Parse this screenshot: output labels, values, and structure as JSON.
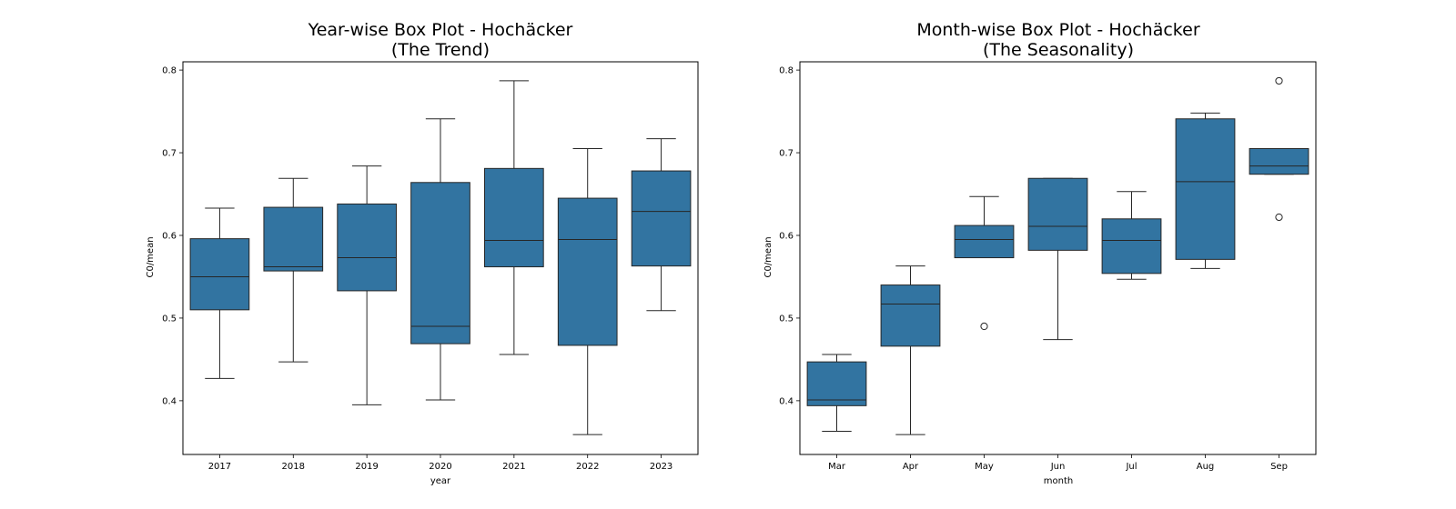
{
  "colors": {
    "box_fill": "#3274a1",
    "line": "#262626",
    "frame": "#000000"
  },
  "chart_data": [
    {
      "type": "box",
      "title": "Year-wise Box Plot - Hochäcker",
      "subtitle": "(The Trend)",
      "xlabel": "year",
      "ylabel": "C0/mean",
      "ylim": [
        0.335,
        0.81
      ],
      "yticks": [
        "0.4",
        "0.5",
        "0.6",
        "0.7",
        "0.8"
      ],
      "categories": [
        "2017",
        "2018",
        "2019",
        "2020",
        "2021",
        "2022",
        "2023"
      ],
      "boxes": [
        {
          "whislo": 0.427,
          "q1": 0.51,
          "med": 0.55,
          "q3": 0.596,
          "whishi": 0.633,
          "fliers": []
        },
        {
          "whislo": 0.447,
          "q1": 0.557,
          "med": 0.562,
          "q3": 0.634,
          "whishi": 0.669,
          "fliers": []
        },
        {
          "whislo": 0.395,
          "q1": 0.533,
          "med": 0.573,
          "q3": 0.638,
          "whishi": 0.684,
          "fliers": []
        },
        {
          "whislo": 0.401,
          "q1": 0.469,
          "med": 0.49,
          "q3": 0.664,
          "whishi": 0.741,
          "fliers": []
        },
        {
          "whislo": 0.456,
          "q1": 0.562,
          "med": 0.594,
          "q3": 0.681,
          "whishi": 0.787,
          "fliers": []
        },
        {
          "whislo": 0.359,
          "q1": 0.467,
          "med": 0.595,
          "q3": 0.645,
          "whishi": 0.705,
          "fliers": []
        },
        {
          "whislo": 0.509,
          "q1": 0.563,
          "med": 0.629,
          "q3": 0.678,
          "whishi": 0.717,
          "fliers": []
        }
      ]
    },
    {
      "type": "box",
      "title": "Month-wise Box Plot - Hochäcker",
      "subtitle": "(The Seasonality)",
      "xlabel": "month",
      "ylabel": "C0/mean",
      "ylim": [
        0.335,
        0.81
      ],
      "yticks": [
        "0.4",
        "0.5",
        "0.6",
        "0.7",
        "0.8"
      ],
      "categories": [
        "Mar",
        "Apr",
        "May",
        "Jun",
        "Jul",
        "Aug",
        "Sep"
      ],
      "boxes": [
        {
          "whislo": 0.363,
          "q1": 0.394,
          "med": 0.401,
          "q3": 0.447,
          "whishi": 0.456,
          "fliers": []
        },
        {
          "whislo": 0.359,
          "q1": 0.466,
          "med": 0.517,
          "q3": 0.54,
          "whishi": 0.563,
          "fliers": []
        },
        {
          "whislo": 0.573,
          "q1": 0.573,
          "med": 0.595,
          "q3": 0.612,
          "whishi": 0.647,
          "fliers": [
            0.49
          ]
        },
        {
          "whislo": 0.474,
          "q1": 0.582,
          "med": 0.611,
          "q3": 0.669,
          "whishi": 0.669,
          "fliers": []
        },
        {
          "whislo": 0.547,
          "q1": 0.554,
          "med": 0.594,
          "q3": 0.62,
          "whishi": 0.653,
          "fliers": []
        },
        {
          "whislo": 0.56,
          "q1": 0.571,
          "med": 0.665,
          "q3": 0.741,
          "whishi": 0.748,
          "fliers": []
        },
        {
          "whislo": 0.674,
          "q1": 0.674,
          "med": 0.684,
          "q3": 0.705,
          "whishi": 0.705,
          "fliers": [
            0.622,
            0.787
          ]
        }
      ]
    }
  ]
}
